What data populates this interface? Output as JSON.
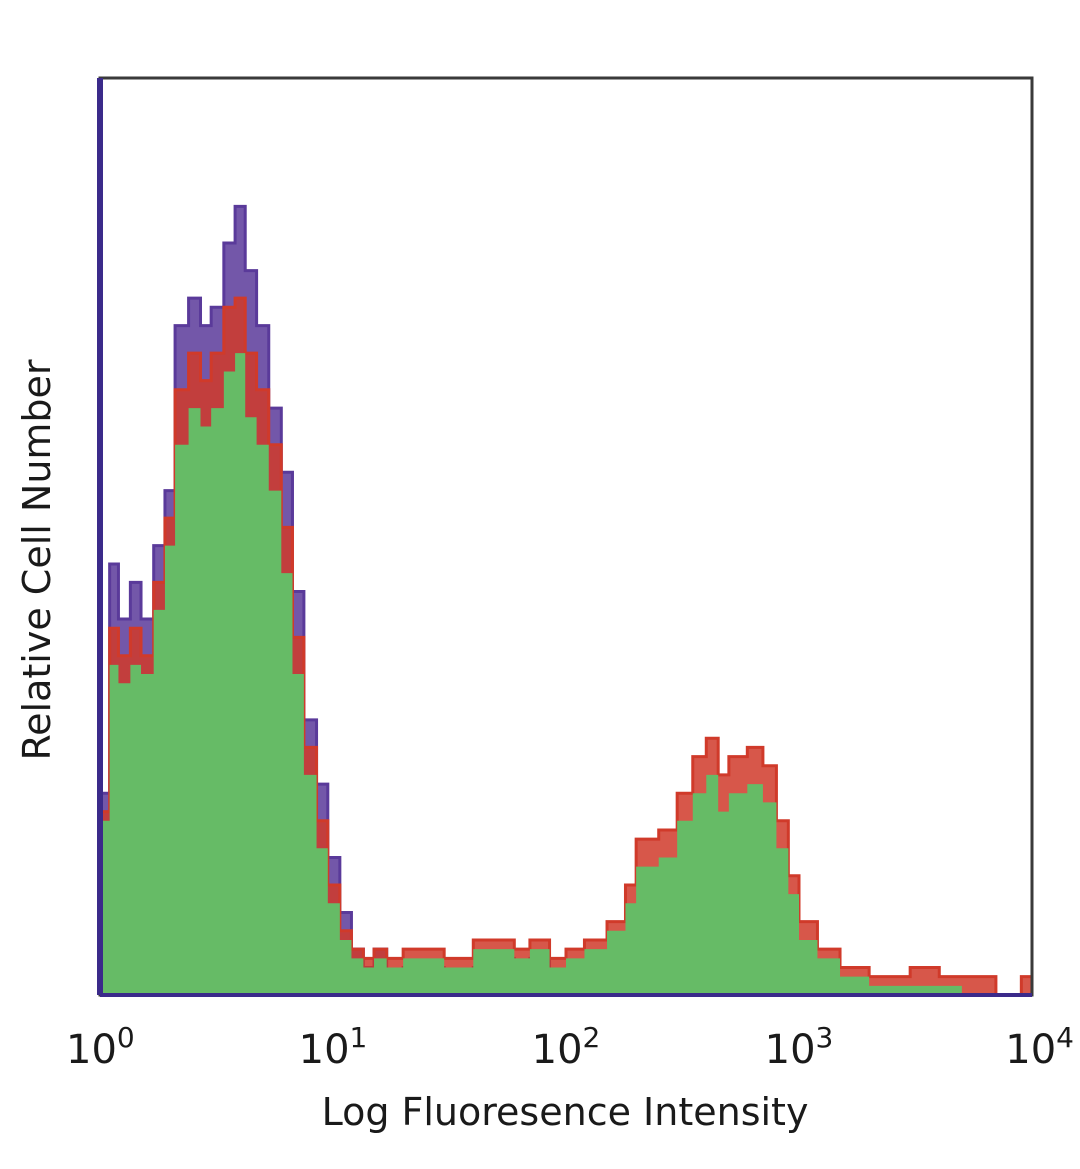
{
  "chart_data": {
    "type": "area",
    "title": "",
    "xlabel": "Log Fluoresence Intensity",
    "ylabel": "Relative Cell Number",
    "xscale": "log",
    "xlim": [
      1,
      10000
    ],
    "ylim": [
      0,
      1.0
    ],
    "grid": false,
    "legend": "none",
    "x_ticks": [
      {
        "base": "10",
        "exp": "0",
        "value": 1
      },
      {
        "base": "10",
        "exp": "1",
        "value": 10
      },
      {
        "base": "10",
        "exp": "2",
        "value": 100
      },
      {
        "base": "10",
        "exp": "3",
        "value": 1000
      },
      {
        "base": "10",
        "exp": "4",
        "value": 10000
      }
    ],
    "x": [
      1.0,
      1.1,
      1.2,
      1.35,
      1.5,
      1.7,
      1.9,
      2.1,
      2.4,
      2.7,
      3.0,
      3.4,
      3.8,
      4.2,
      4.7,
      5.3,
      6.0,
      6.7,
      7.5,
      8.5,
      9.5,
      10.7,
      12,
      13.5,
      15,
      17,
      20,
      25,
      30,
      40,
      50,
      60,
      70,
      85,
      100,
      120,
      150,
      180,
      200,
      250,
      300,
      350,
      400,
      450,
      500,
      600,
      700,
      800,
      900,
      1000,
      1200,
      1500,
      1800,
      2000,
      2500,
      3000,
      4000,
      5000,
      7000,
      9000,
      10000
    ],
    "series": [
      {
        "color": "#5a3a9a",
        "values": [
          0.22,
          0.47,
          0.41,
          0.45,
          0.41,
          0.49,
          0.55,
          0.73,
          0.76,
          0.73,
          0.75,
          0.82,
          0.86,
          0.79,
          0.73,
          0.64,
          0.57,
          0.44,
          0.3,
          0.23,
          0.15,
          0.09,
          0.05,
          0.03,
          0.05,
          0.02,
          0.03,
          0.03,
          0.02,
          0.03,
          0.04,
          0.03,
          0.04,
          0.02,
          0.01,
          0.0,
          0.0,
          0.0,
          0.0,
          0.0,
          0.0,
          0.0,
          0.0,
          0.0,
          0.0,
          0.0,
          0.0,
          0.0,
          0.0,
          0.0,
          0.0,
          0.0,
          0.0,
          0.0,
          0.0,
          0.0,
          0.0,
          0.0,
          0.0,
          0.0,
          0.0
        ]
      },
      {
        "color": "#d03a2a",
        "values": [
          0.2,
          0.4,
          0.37,
          0.4,
          0.37,
          0.45,
          0.52,
          0.66,
          0.7,
          0.67,
          0.7,
          0.75,
          0.76,
          0.7,
          0.66,
          0.6,
          0.51,
          0.39,
          0.27,
          0.19,
          0.12,
          0.07,
          0.05,
          0.04,
          0.05,
          0.04,
          0.05,
          0.05,
          0.04,
          0.06,
          0.06,
          0.05,
          0.06,
          0.04,
          0.05,
          0.06,
          0.08,
          0.12,
          0.17,
          0.18,
          0.22,
          0.26,
          0.28,
          0.24,
          0.26,
          0.27,
          0.25,
          0.19,
          0.13,
          0.08,
          0.05,
          0.03,
          0.03,
          0.02,
          0.02,
          0.03,
          0.02,
          0.02,
          0.0,
          0.02,
          0.0
        ]
      },
      {
        "color": "#66bb66",
        "values": [
          0.19,
          0.36,
          0.34,
          0.36,
          0.35,
          0.42,
          0.49,
          0.6,
          0.64,
          0.62,
          0.64,
          0.68,
          0.7,
          0.63,
          0.6,
          0.55,
          0.46,
          0.35,
          0.24,
          0.16,
          0.1,
          0.06,
          0.04,
          0.03,
          0.04,
          0.03,
          0.04,
          0.04,
          0.03,
          0.05,
          0.05,
          0.04,
          0.05,
          0.03,
          0.04,
          0.05,
          0.07,
          0.1,
          0.14,
          0.15,
          0.19,
          0.22,
          0.24,
          0.2,
          0.22,
          0.23,
          0.21,
          0.16,
          0.11,
          0.06,
          0.04,
          0.02,
          0.02,
          0.01,
          0.01,
          0.01,
          0.01,
          0.0,
          0.0,
          0.0,
          0.0
        ]
      }
    ]
  }
}
